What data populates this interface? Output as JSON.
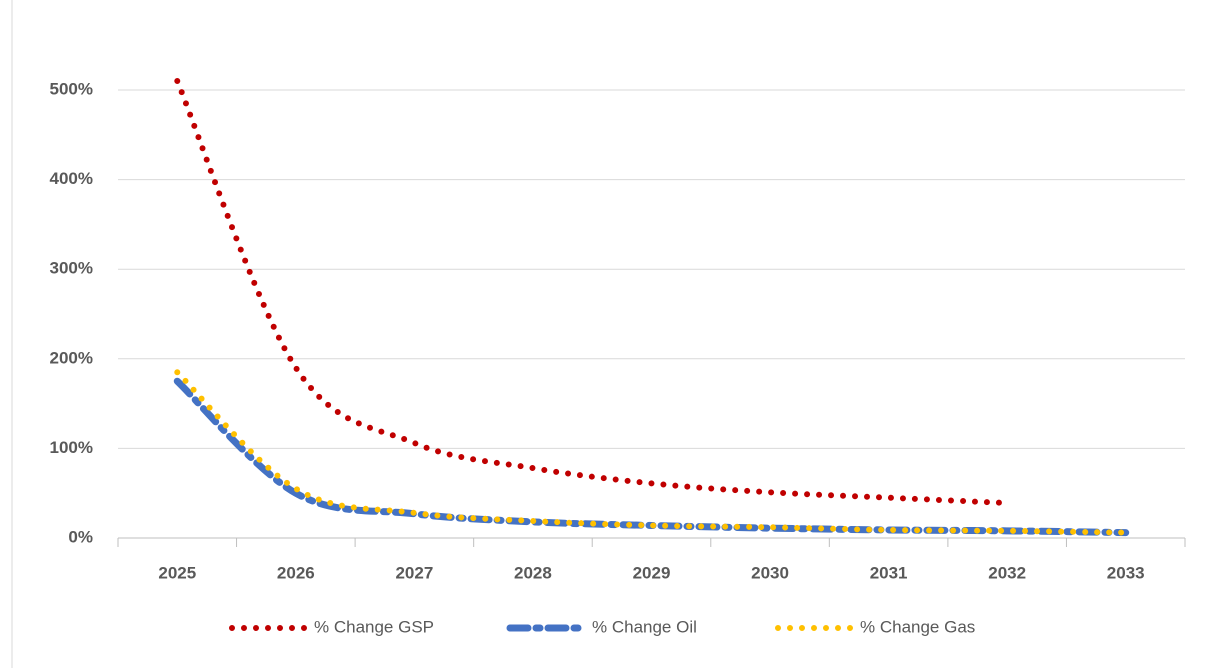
{
  "chart_data": {
    "type": "line",
    "categories": [
      "2025",
      "2026",
      "2027",
      "2028",
      "2029",
      "2030",
      "2031",
      "2032",
      "2033"
    ],
    "series": [
      {
        "name": "% Change GSP",
        "color": "#c00000",
        "style": "dotted",
        "values": [
          510,
          190,
          106,
          78,
          61,
          51,
          45,
          39,
          null
        ]
      },
      {
        "name": "% Change Oil",
        "color": "#4472c4",
        "style": "dashed",
        "values": [
          175,
          50,
          27,
          18,
          14,
          11,
          9,
          8,
          6
        ]
      },
      {
        "name": "% Change Gas",
        "color": "#ffc000",
        "style": "dotted",
        "values": [
          185,
          55,
          28,
          19,
          14,
          12,
          9,
          8,
          6
        ]
      }
    ],
    "ylim": [
      0,
      500
    ],
    "yticks": [
      {
        "value": 0,
        "label": "0%"
      },
      {
        "value": 100,
        "label": "100%"
      },
      {
        "value": 200,
        "label": "200%"
      },
      {
        "value": 300,
        "label": "300%"
      },
      {
        "value": 400,
        "label": "400%"
      },
      {
        "value": 500,
        "label": "500%"
      }
    ],
    "grid": true,
    "legend": "bottom"
  }
}
